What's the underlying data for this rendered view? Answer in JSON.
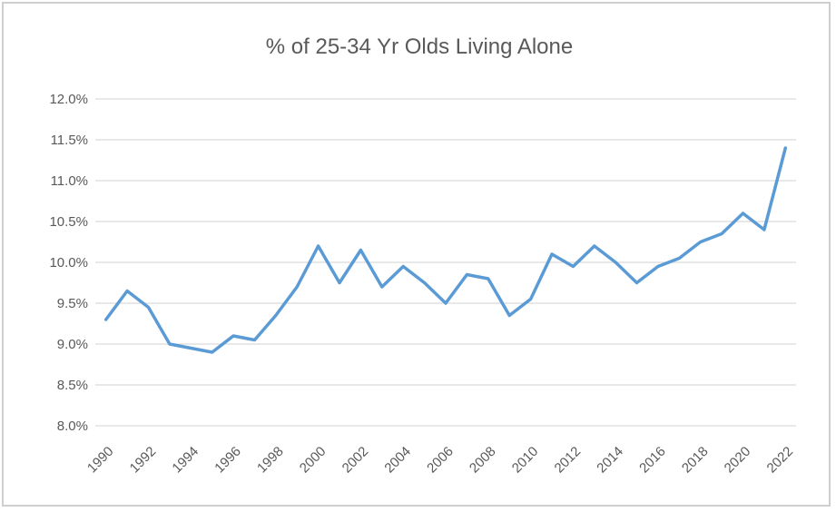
{
  "chart_data": {
    "type": "line",
    "title": "% of 25-34 Yr Olds Living Alone",
    "x": [
      1990,
      1991,
      1992,
      1993,
      1994,
      1995,
      1996,
      1997,
      1998,
      1999,
      2000,
      2001,
      2002,
      2003,
      2004,
      2005,
      2006,
      2007,
      2008,
      2009,
      2010,
      2011,
      2012,
      2013,
      2014,
      2015,
      2016,
      2017,
      2018,
      2019,
      2020,
      2021,
      2022
    ],
    "series": [
      {
        "name": "% of 25-34 Yr Olds Living Alone",
        "values": [
          9.3,
          9.65,
          9.45,
          9.0,
          8.95,
          8.9,
          9.1,
          9.05,
          9.35,
          9.7,
          10.2,
          9.75,
          10.15,
          9.7,
          9.95,
          9.75,
          9.5,
          9.85,
          9.8,
          9.35,
          9.55,
          10.1,
          9.95,
          10.2,
          10.0,
          9.75,
          9.95,
          10.05,
          10.25,
          10.35,
          10.6,
          10.4,
          11.4
        ]
      }
    ],
    "xlabel": "",
    "ylabel": "",
    "ylim": [
      8.0,
      12.0
    ],
    "ytick_labels": [
      "8.0%",
      "8.5%",
      "9.0%",
      "9.5%",
      "10.0%",
      "10.5%",
      "11.0%",
      "11.5%",
      "12.0%"
    ],
    "ytick_values": [
      8.0,
      8.5,
      9.0,
      9.5,
      10.0,
      10.5,
      11.0,
      11.5,
      12.0
    ],
    "xtick_labels": [
      "1990",
      "1992",
      "1994",
      "1996",
      "1998",
      "2000",
      "2002",
      "2004",
      "2006",
      "2008",
      "2010",
      "2012",
      "2014",
      "2016",
      "2018",
      "2020",
      "2022"
    ],
    "xtick_every": 2,
    "grid": true,
    "legend": false,
    "colors": {
      "line": "#5b9bd5",
      "gridline": "#d9d9d9",
      "tick_label": "#595959",
      "title": "#595959",
      "card_border": "#d0cece",
      "background": "#ffffff"
    }
  }
}
